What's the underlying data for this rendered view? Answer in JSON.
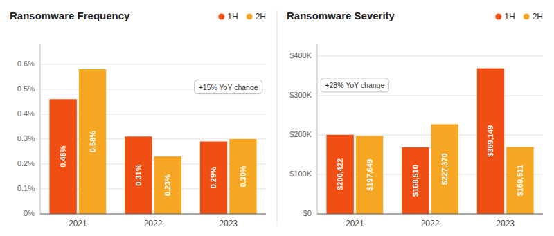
{
  "chart_data": [
    {
      "type": "bar",
      "title": "Ransomware Frequency",
      "categories": [
        "2021",
        "2022",
        "2023"
      ],
      "series": [
        {
          "name": "1H",
          "color": "#F04E12",
          "values": [
            0.0046,
            0.0031,
            0.0029
          ],
          "value_labels": [
            "0.46%",
            "0.31%",
            "0.29%"
          ]
        },
        {
          "name": "2H",
          "color": "#F5A623",
          "values": [
            0.0058,
            0.0023,
            0.003
          ],
          "value_labels": [
            "0.58%",
            "0.23%",
            "0.30%"
          ]
        }
      ],
      "ylim": [
        0,
        0.0068
      ],
      "yticks": [
        {
          "value": 0,
          "label": "0%"
        },
        {
          "value": 0.001,
          "label": "0.1%"
        },
        {
          "value": 0.002,
          "label": "0.2%"
        },
        {
          "value": 0.003,
          "label": "0.3%"
        },
        {
          "value": 0.004,
          "label": "0.4%"
        },
        {
          "value": 0.005,
          "label": "0.5%"
        },
        {
          "value": 0.006,
          "label": "0.6%"
        }
      ],
      "grid": true,
      "data_labels": true,
      "legend": "upper right",
      "annotations": [
        "+15% YoY change"
      ]
    },
    {
      "type": "bar",
      "title": "Ransomware Severity",
      "categories": [
        "2021",
        "2022",
        "2023"
      ],
      "series": [
        {
          "name": "1H",
          "color": "#F04E12",
          "values": [
            200422,
            168510,
            369149
          ],
          "value_labels": [
            "$200,422",
            "$168,510",
            "$369,149"
          ]
        },
        {
          "name": "2H",
          "color": "#F5A623",
          "values": [
            197649,
            227370,
            169511
          ],
          "value_labels": [
            "$197,649",
            "$227,370",
            "$169,511"
          ]
        }
      ],
      "ylim": [
        0,
        430000
      ],
      "yticks": [
        {
          "value": 0,
          "label": "$0"
        },
        {
          "value": 100000,
          "label": "$100K"
        },
        {
          "value": 200000,
          "label": "$200K"
        },
        {
          "value": 300000,
          "label": "$300K"
        },
        {
          "value": 400000,
          "label": "$400K"
        }
      ],
      "grid": true,
      "data_labels": true,
      "legend": "upper right",
      "annotations": [
        "+28% YoY change"
      ]
    }
  ]
}
